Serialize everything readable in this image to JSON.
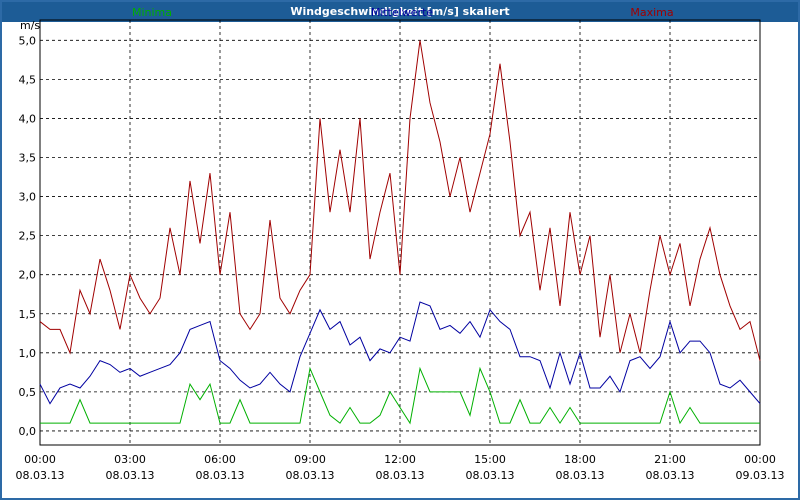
{
  "chart_data": {
    "type": "line",
    "title": "Windgeschwindigkeit [m/s] skaliert",
    "y_label": "m/s",
    "x": [
      0,
      20,
      40,
      60,
      80,
      100,
      120,
      140,
      160,
      180,
      200,
      220,
      240,
      260,
      280,
      300,
      320,
      340,
      360,
      380,
      400,
      420,
      440,
      460,
      480,
      500,
      520,
      540,
      560,
      580,
      600,
      620,
      640,
      660,
      680,
      700,
      720,
      740,
      760,
      780,
      800,
      820,
      840,
      860,
      880,
      900,
      920,
      940,
      960,
      980,
      1000,
      1020,
      1040,
      1060,
      1080,
      1100,
      1120,
      1140,
      1160,
      1180,
      1200,
      1220,
      1240,
      1260,
      1280,
      1300,
      1320,
      1340,
      1360,
      1380,
      1400,
      1420,
      1440
    ],
    "xlim": [
      0,
      1440
    ],
    "xticks": [
      {
        "value": 0,
        "label": "00:00"
      },
      {
        "value": 180,
        "label": "03:00"
      },
      {
        "value": 360,
        "label": "06:00"
      },
      {
        "value": 540,
        "label": "09:00"
      },
      {
        "value": 720,
        "label": "12:00"
      },
      {
        "value": 900,
        "label": "15:00"
      },
      {
        "value": 1080,
        "label": "18:00"
      },
      {
        "value": 1260,
        "label": "21:00"
      },
      {
        "value": 1440,
        "label": "00:00"
      }
    ],
    "xtick_dates": [
      "08.03.13",
      "08.03.13",
      "08.03.13",
      "08.03.13",
      "08.03.13",
      "08.03.13",
      "08.03.13",
      "08.03.13",
      "09.03.13"
    ],
    "ylim": [
      -0.18,
      5.26
    ],
    "yticks": [
      {
        "value": 0,
        "label": "0,0"
      },
      {
        "value": 0.5,
        "label": "0,5"
      },
      {
        "value": 1,
        "label": "1,0"
      },
      {
        "value": 1.5,
        "label": "1,5"
      },
      {
        "value": 2,
        "label": "2,0"
      },
      {
        "value": 2.5,
        "label": "2,5"
      },
      {
        "value": 3,
        "label": "3,0"
      },
      {
        "value": 3.5,
        "label": "3,5"
      },
      {
        "value": 4,
        "label": "4,0"
      },
      {
        "value": 4.5,
        "label": "4,5"
      },
      {
        "value": 5,
        "label": "5,0"
      }
    ],
    "grid": true,
    "series": [
      {
        "name": "Minima",
        "color": "#00b000",
        "values": [
          0.1,
          0.1,
          0.1,
          0.1,
          0.4,
          0.1,
          0.1,
          0.1,
          0.1,
          0.1,
          0.1,
          0.1,
          0.1,
          0.1,
          0.1,
          0.6,
          0.4,
          0.6,
          0.1,
          0.1,
          0.4,
          0.1,
          0.1,
          0.1,
          0.1,
          0.1,
          0.1,
          0.8,
          0.5,
          0.2,
          0.1,
          0.3,
          0.1,
          0.1,
          0.2,
          0.5,
          0.3,
          0.1,
          0.8,
          0.5,
          0.5,
          0.5,
          0.5,
          0.2,
          0.8,
          0.5,
          0.1,
          0.1,
          0.4,
          0.1,
          0.1,
          0.3,
          0.1,
          0.3,
          0.1,
          0.1,
          0.1,
          0.1,
          0.1,
          0.1,
          0.1,
          0.1,
          0.1,
          0.5,
          0.1,
          0.3,
          0.1,
          0.1,
          0.1,
          0.1,
          0.1,
          0.1,
          0.1
        ]
      },
      {
        "name": "Mittelwerte",
        "color": "#0000a0",
        "values": [
          0.6,
          0.35,
          0.55,
          0.6,
          0.55,
          0.7,
          0.9,
          0.85,
          0.75,
          0.8,
          0.7,
          0.75,
          0.8,
          0.85,
          1.0,
          1.3,
          1.35,
          1.4,
          0.9,
          0.8,
          0.65,
          0.55,
          0.6,
          0.75,
          0.6,
          0.5,
          0.95,
          1.25,
          1.55,
          1.3,
          1.4,
          1.1,
          1.2,
          0.9,
          1.05,
          1.0,
          1.2,
          1.15,
          1.65,
          1.6,
          1.3,
          1.35,
          1.25,
          1.4,
          1.2,
          1.55,
          1.4,
          1.3,
          0.95,
          0.95,
          0.9,
          0.55,
          1.0,
          0.6,
          1.0,
          0.55,
          0.55,
          0.7,
          0.5,
          0.9,
          0.95,
          0.8,
          0.95,
          1.4,
          1.0,
          1.15,
          1.15,
          1.0,
          0.6,
          0.55,
          0.65,
          0.5,
          0.35
        ]
      },
      {
        "name": "Maxima",
        "color": "#a00000",
        "values": [
          1.4,
          1.3,
          1.3,
          1.0,
          1.8,
          1.5,
          2.2,
          1.8,
          1.3,
          2.0,
          1.7,
          1.5,
          1.7,
          2.6,
          2.0,
          3.2,
          2.4,
          3.3,
          2.0,
          2.8,
          1.5,
          1.3,
          1.5,
          2.7,
          1.7,
          1.5,
          1.8,
          2.0,
          4.0,
          2.8,
          3.6,
          2.8,
          4.0,
          2.2,
          2.8,
          3.3,
          2.0,
          4.0,
          5.0,
          4.2,
          3.7,
          3.0,
          3.5,
          2.8,
          3.3,
          3.8,
          4.7,
          3.7,
          2.5,
          2.8,
          1.8,
          2.6,
          1.6,
          2.8,
          2.0,
          2.5,
          1.2,
          2.0,
          1.0,
          1.5,
          1.0,
          1.8,
          2.5,
          2.0,
          2.4,
          1.6,
          2.2,
          2.6,
          2.0,
          1.6,
          1.3,
          1.4,
          0.9
        ]
      }
    ]
  }
}
